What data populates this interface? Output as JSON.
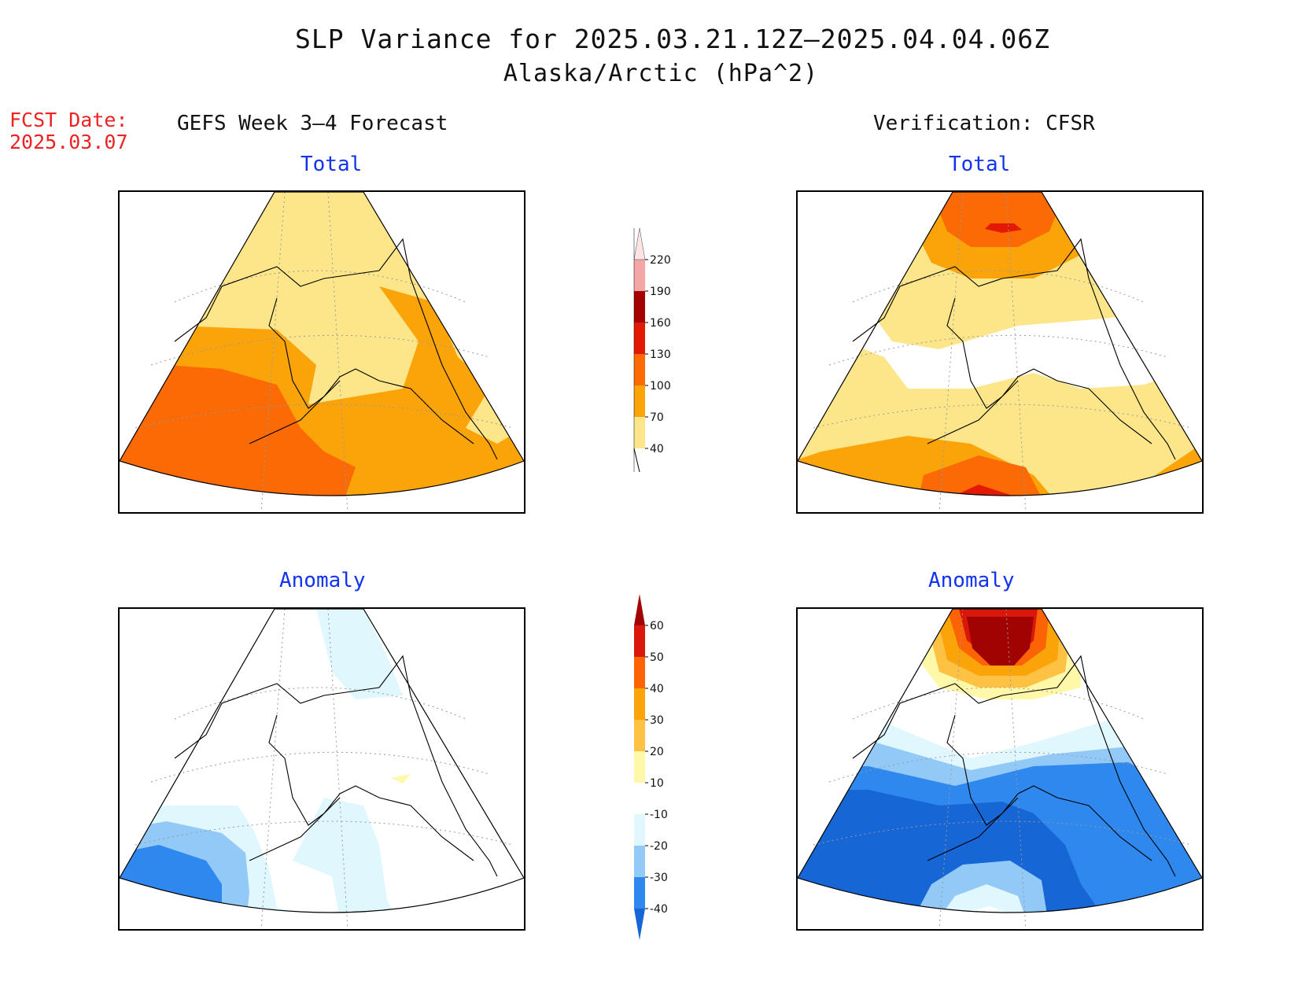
{
  "header": {
    "title": "SLP Variance for 2025.03.21.12Z–2025.04.04.06Z",
    "subtitle": "Alaska/Arctic (hPa^2)",
    "fcst_label": "FCST Date:",
    "fcst_date": "2025.03.07"
  },
  "columns": {
    "left": "GEFS Week 3–4 Forecast",
    "right": "Verification: CFSR"
  },
  "panels": {
    "total_label": "Total",
    "anomaly_label": "Anomaly"
  },
  "colorbars": {
    "total": {
      "ticks": [
        "40",
        "70",
        "100",
        "130",
        "160",
        "190",
        "220"
      ],
      "colors": [
        "#fde68a",
        "#fba409",
        "#fb6a04",
        "#e31904",
        "#a50303",
        "#f4a6a6",
        "#fde4e4"
      ]
    },
    "anomaly": {
      "ticks": [
        "-40",
        "-30",
        "-20",
        "-10",
        "10",
        "20",
        "30",
        "40",
        "50",
        "60"
      ],
      "colors": [
        "#1666d6",
        "#2e88ee",
        "#93c9f6",
        "#dff7fd",
        "#ffffff",
        "#fff8a8",
        "#fdc244",
        "#fba409",
        "#fb6304",
        "#d9170a",
        "#a10303"
      ]
    }
  }
}
